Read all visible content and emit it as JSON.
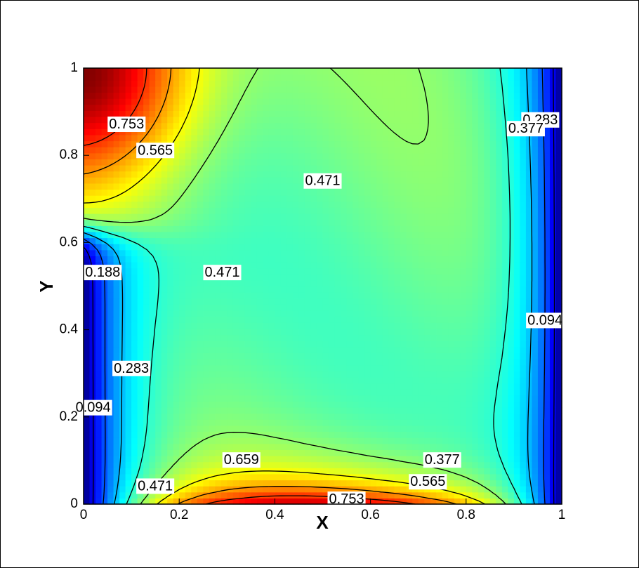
{
  "chart_data": {
    "type": "contour",
    "x_label": "X",
    "y_label": "Y",
    "xlim": [
      0,
      1
    ],
    "ylim": [
      0,
      1
    ],
    "xticks": [
      0,
      0.2,
      0.4,
      0.6,
      0.8,
      1
    ],
    "yticks": [
      0,
      0.2,
      0.4,
      0.6,
      0.8,
      1
    ],
    "colormap": "jet",
    "contour_labels": [
      {
        "value": 0.753,
        "x": 0.09,
        "y": 0.87
      },
      {
        "value": 0.565,
        "x": 0.15,
        "y": 0.81
      },
      {
        "value": 0.471,
        "x": 0.5,
        "y": 0.74
      },
      {
        "value": 0.283,
        "x": 0.955,
        "y": 0.88
      },
      {
        "value": 0.377,
        "x": 0.925,
        "y": 0.86
      },
      {
        "value": 0.471,
        "x": 0.29,
        "y": 0.53
      },
      {
        "value": 0.188,
        "x": 0.04,
        "y": 0.53
      },
      {
        "value": 0.283,
        "x": 0.1,
        "y": 0.31
      },
      {
        "value": 0.094,
        "x": 0.02,
        "y": 0.22
      },
      {
        "value": 0.094,
        "x": 0.965,
        "y": 0.42
      },
      {
        "value": 0.659,
        "x": 0.33,
        "y": 0.1
      },
      {
        "value": 0.377,
        "x": 0.75,
        "y": 0.1
      },
      {
        "value": 0.565,
        "x": 0.72,
        "y": 0.05
      },
      {
        "value": 0.471,
        "x": 0.15,
        "y": 0.04
      },
      {
        "value": 0.753,
        "x": 0.55,
        "y": 0.01
      }
    ]
  }
}
